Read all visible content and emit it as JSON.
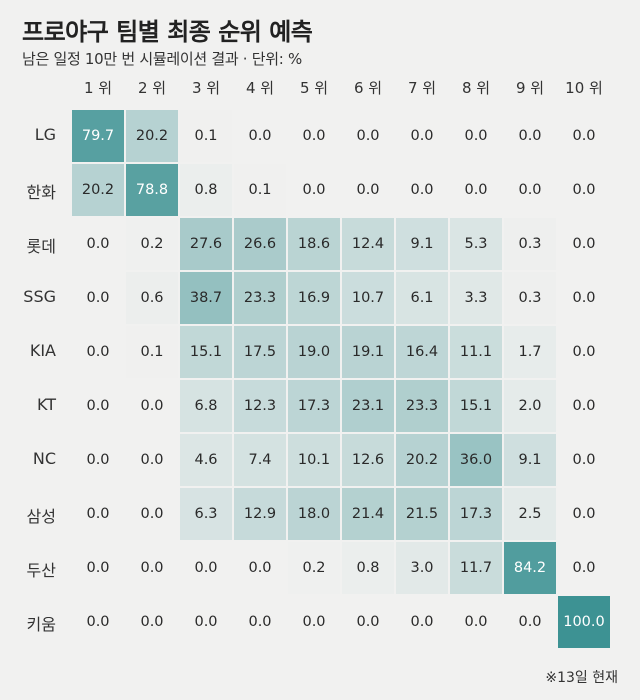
{
  "title": "프로야구 팀별 최종 순위 예측",
  "subtitle": "남은 일정 10만 번 시뮬레이션 결과 · 단위: %",
  "footnote": "※13일 현재",
  "colors": {
    "background": "#f1f1f0",
    "scale_low": "#f1f1f0",
    "scale_high": "#3d9293"
  },
  "chart_data": {
    "type": "heatmap",
    "title": "프로야구 팀별 최종 순위 예측",
    "subtitle": "남은 일정 10만 번 시뮬레이션 결과 · 단위: %",
    "columns": [
      "1 위",
      "2 위",
      "3 위",
      "4 위",
      "5 위",
      "6 위",
      "7 위",
      "8 위",
      "9 위",
      "10 위"
    ],
    "rows": [
      "LG",
      "한화",
      "롯데",
      "SSG",
      "KIA",
      "KT",
      "NC",
      "삼성",
      "두산",
      "키움"
    ],
    "values": [
      [
        "79.7",
        "20.2",
        "0.1",
        "0.0",
        "0.0",
        "0.0",
        "0.0",
        "0.0",
        "0.0",
        "0.0"
      ],
      [
        "20.2",
        "78.8",
        "0.8",
        "0.1",
        "0.0",
        "0.0",
        "0.0",
        "0.0",
        "0.0",
        "0.0"
      ],
      [
        "0.0",
        "0.2",
        "27.6",
        "26.6",
        "18.6",
        "12.4",
        "9.1",
        "5.3",
        "0.3",
        "0.0"
      ],
      [
        "0.0",
        "0.6",
        "38.7",
        "23.3",
        "16.9",
        "10.7",
        "6.1",
        "3.3",
        "0.3",
        "0.0"
      ],
      [
        "0.0",
        "0.1",
        "15.1",
        "17.5",
        "19.0",
        "19.1",
        "16.4",
        "11.1",
        "1.7",
        "0.0"
      ],
      [
        "0.0",
        "0.0",
        "6.8",
        "12.3",
        "17.3",
        "23.1",
        "23.3",
        "15.1",
        "2.0",
        "0.0"
      ],
      [
        "0.0",
        "0.0",
        "4.6",
        "7.4",
        "10.1",
        "12.6",
        "20.2",
        "36.0",
        "9.1",
        "0.0"
      ],
      [
        "0.0",
        "0.0",
        "6.3",
        "12.9",
        "18.0",
        "21.4",
        "21.5",
        "17.3",
        "2.5",
        "0.0"
      ],
      [
        "0.0",
        "0.0",
        "0.0",
        "0.0",
        "0.2",
        "0.8",
        "3.0",
        "11.7",
        "84.2",
        "0.0"
      ],
      [
        "0.0",
        "0.0",
        "0.0",
        "0.0",
        "0.0",
        "0.0",
        "0.0",
        "0.0",
        "0.0",
        "100.0"
      ]
    ]
  }
}
